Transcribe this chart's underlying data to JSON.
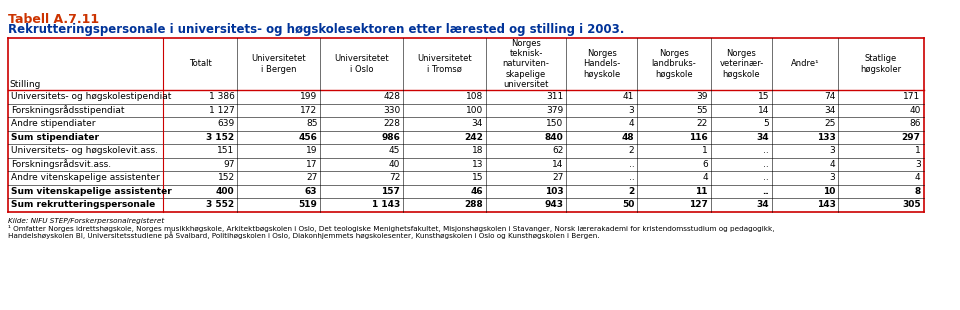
{
  "title1": "Tabell A.7.11",
  "title2": "Rekrutteringspersonale i universitets- og høgskolesektoren etter lærested og stilling i 2003.",
  "title1_color": "#CC3300",
  "title2_color": "#003399",
  "header_row1": [
    "Totalt",
    "Universitetet\ni Bergen",
    "Universitetet\ni Oslo",
    "Universitetet\ni Tromsø",
    "Norges\nteknisk-\nnaturviten-\nskapelige\nuniversitet",
    "Norges\nHandels-\nhøyskole",
    "Norges\nlandbruks-\nhøgskole",
    "Norges\nveterinær-\nhøgskole",
    "Andre¹",
    "Statlige\nhøgskoler"
  ],
  "subheader": "Stilling",
  "rows": [
    {
      "label": "Universitets- og høgskolestipendiat",
      "values": [
        "1 386",
        "199",
        "428",
        "108",
        "311",
        "41",
        "39",
        "15",
        "74",
        "171"
      ],
      "bold": false
    },
    {
      "label": "Forskningsrådsstipendiat",
      "values": [
        "1 127",
        "172",
        "330",
        "100",
        "379",
        "3",
        "55",
        "14",
        "34",
        "40"
      ],
      "bold": false
    },
    {
      "label": "Andre stipendiater",
      "values": [
        "639",
        "85",
        "228",
        "34",
        "150",
        "4",
        "22",
        "5",
        "25",
        "86"
      ],
      "bold": false
    },
    {
      "label": "Sum stipendiater",
      "values": [
        "3 152",
        "456",
        "986",
        "242",
        "840",
        "48",
        "116",
        "34",
        "133",
        "297"
      ],
      "bold": true
    },
    {
      "label": "Universitets- og høgskolevit.ass.",
      "values": [
        "151",
        "19",
        "45",
        "18",
        "62",
        "2",
        "1",
        "..",
        "3",
        "1"
      ],
      "bold": false
    },
    {
      "label": "Forskningsrådsvit.ass.",
      "values": [
        "97",
        "17",
        "40",
        "13",
        "14",
        "..",
        "6",
        "..",
        "4",
        "3"
      ],
      "bold": false
    },
    {
      "label": "Andre vitenskapelige assistenter",
      "values": [
        "152",
        "27",
        "72",
        "15",
        "27",
        "..",
        "4",
        "..",
        "3",
        "4"
      ],
      "bold": false
    },
    {
      "label": "Sum vitenskapelige assistenter",
      "values": [
        "400",
        "63",
        "157",
        "46",
        "103",
        "2",
        "11",
        "..",
        "10",
        "8"
      ],
      "bold": true
    },
    {
      "label": "Sum rekrutteringspersonale",
      "values": [
        "3 552",
        "519",
        "1 143",
        "288",
        "943",
        "50",
        "127",
        "34",
        "143",
        "305"
      ],
      "bold": true
    }
  ],
  "footnote1": "Kilde: NIFU STEP/Forskerpersonalregisteret",
  "footnote2": "¹ Omfatter Norges idrettshøgskole, Norges musikkhøgskole, Arkitektbøgskolen i Oslo, Det teologiske Menighetsfakultet, Misjonshøgskolen i Stavanger, Norsk lærerakademi for kristendomsstudium og pedagogikk,",
  "footnote3": "Handelshøyskolen BI, Universitetsstudiene på Svalbard, Politihøgskolen i Oslo, Diakonhjemmets høgskolesenter, Kunsthøgskolen i Oslo og Kunsthøgskolen i Bergen.",
  "border_color": "#CC0000",
  "header_bg": "#ffffff",
  "row_bg": "#ffffff",
  "text_color": "#000000"
}
